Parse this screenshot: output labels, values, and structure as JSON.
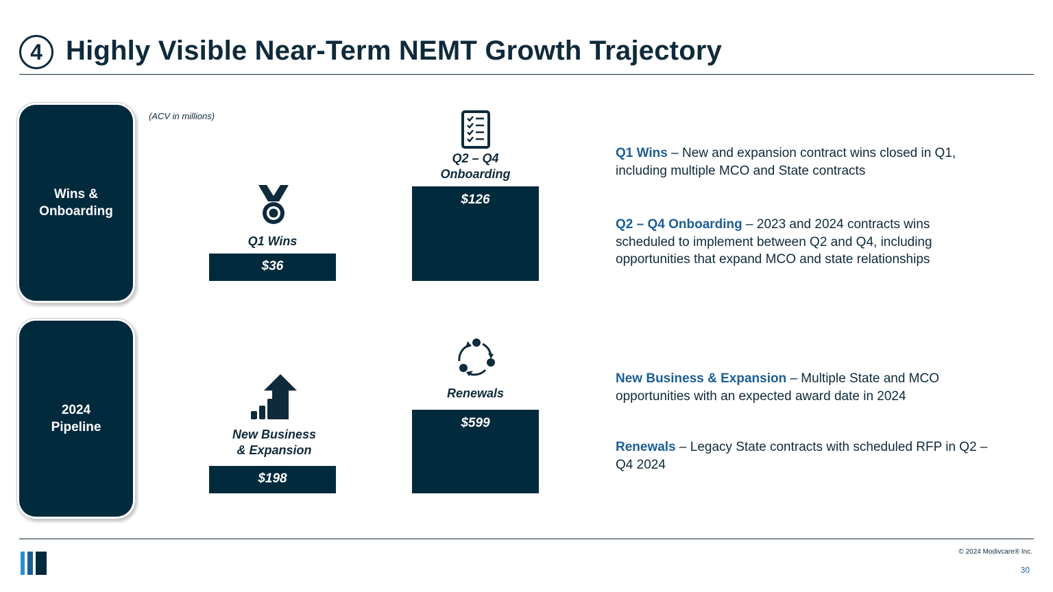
{
  "header": {
    "section_number": "4",
    "title": "Highly Visible Near-Term NEMT Growth Trajectory"
  },
  "sidebar": {
    "wins_label": "Wins &\nOnboarding",
    "pipeline_label": "2024\nPipeline"
  },
  "chart_data": {
    "type": "bar",
    "unit_note": "(ACV in millions)",
    "series": [
      {
        "name": "Q1 Wins",
        "group": "Wins & Onboarding",
        "value": 36,
        "value_label": "$36",
        "icon": "medal-icon"
      },
      {
        "name": "Q2 – Q4\nOnboarding",
        "group": "Wins & Onboarding",
        "value": 126,
        "value_label": "$126",
        "icon": "checklist-icon"
      },
      {
        "name": "New Business\n& Expansion",
        "group": "2024 Pipeline",
        "value": 198,
        "value_label": "$198",
        "icon": "growth-chart-icon"
      },
      {
        "name": "Renewals",
        "group": "2024 Pipeline",
        "value": 599,
        "value_label": "$599",
        "icon": "cycle-icon"
      }
    ]
  },
  "descriptions": [
    {
      "lead": "Q1 Wins",
      "text": " – New and expansion contract wins closed in Q1, including multiple MCO and State contracts"
    },
    {
      "lead": "Q2 – Q4 Onboarding",
      "text": " – 2023 and 2024 contracts wins scheduled to implement between Q2 and Q4, including opportunities that expand MCO and state relationships"
    },
    {
      "lead": "New Business & Expansion",
      "text": " – Multiple State and MCO opportunities with an expected award date in 2024"
    },
    {
      "lead": "Renewals",
      "text": " – Legacy State contracts with scheduled RFP in Q2 – Q4 2024"
    }
  ],
  "footer": {
    "copyright": "© 2024 Modivcare® Inc.",
    "page_number": "30"
  },
  "colors": {
    "navy": "#022a3d",
    "accent_blue": "#1b5e94",
    "logo_light": "#2a8fd0"
  }
}
